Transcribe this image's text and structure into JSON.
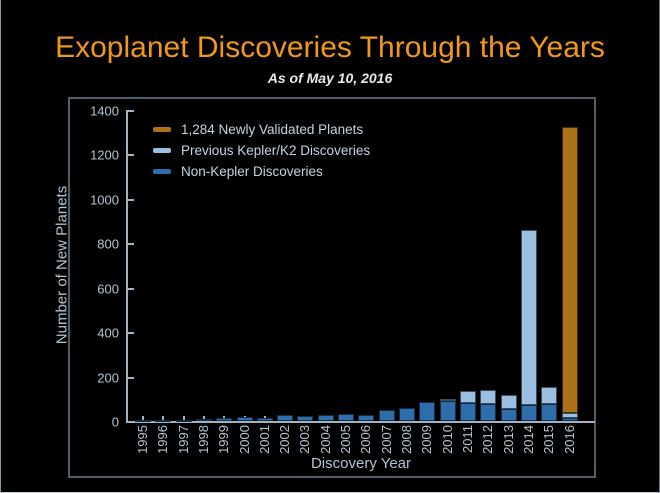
{
  "title": "Exoplanet Discoveries Through the Years",
  "subtitle": "As of May 10, 2016",
  "colors": {
    "background": "#000000",
    "title_orange": "#F0981B",
    "axis_text": "#B3C4D1",
    "spine": "#9FB3C0",
    "frame_border": "#4E5D68",
    "bar_orange": "#AD7217",
    "bar_light_blue": "#9BBFE0",
    "bar_dark_blue": "#2E6EAD"
  },
  "legend": [
    {
      "label": "1,284 Newly Validated Planets",
      "color": "#AD7217"
    },
    {
      "label": "Previous Kepler/K2 Discoveries",
      "color": "#9BBFE0"
    },
    {
      "label": "Non-Kepler Discoveries",
      "color": "#2E6EAD"
    }
  ],
  "chart_data": {
    "type": "bar",
    "stacked": true,
    "title": "Exoplanet Discoveries Through the Years",
    "subtitle": "As of May 10, 2016",
    "xlabel": "Discovery Year",
    "ylabel": "Number of New Planets",
    "ylim": [
      0,
      1400
    ],
    "yticks": [
      0,
      200,
      400,
      600,
      800,
      1000,
      1200,
      1400
    ],
    "grid": false,
    "legend_position": "upper-left",
    "categories": [
      "1995",
      "1996",
      "1997",
      "1998",
      "1999",
      "2000",
      "2001",
      "2002",
      "2003",
      "2004",
      "2005",
      "2006",
      "2007",
      "2008",
      "2009",
      "2010",
      "2011",
      "2012",
      "2013",
      "2014",
      "2015",
      "2016"
    ],
    "series": [
      {
        "name": "Non-Kepler Discoveries",
        "color": "#2E6EAD",
        "values": [
          1,
          6,
          1,
          7,
          13,
          16,
          12,
          29,
          24,
          26,
          33,
          28,
          48,
          60,
          84,
          92,
          80,
          75,
          55,
          71,
          77,
          12
        ]
      },
      {
        "name": "Previous Kepler/K2 Discoveries",
        "color": "#9BBFE0",
        "values": [
          0,
          0,
          0,
          0,
          0,
          0,
          0,
          0,
          0,
          0,
          0,
          0,
          0,
          0,
          0,
          8,
          55,
          65,
          63,
          789,
          78,
          26
        ]
      },
      {
        "name": "1,284 Newly Validated Planets",
        "color": "#AD7217",
        "values": [
          0,
          0,
          0,
          0,
          0,
          0,
          0,
          0,
          0,
          0,
          0,
          0,
          0,
          0,
          0,
          0,
          0,
          0,
          0,
          0,
          0,
          1284
        ]
      }
    ]
  }
}
